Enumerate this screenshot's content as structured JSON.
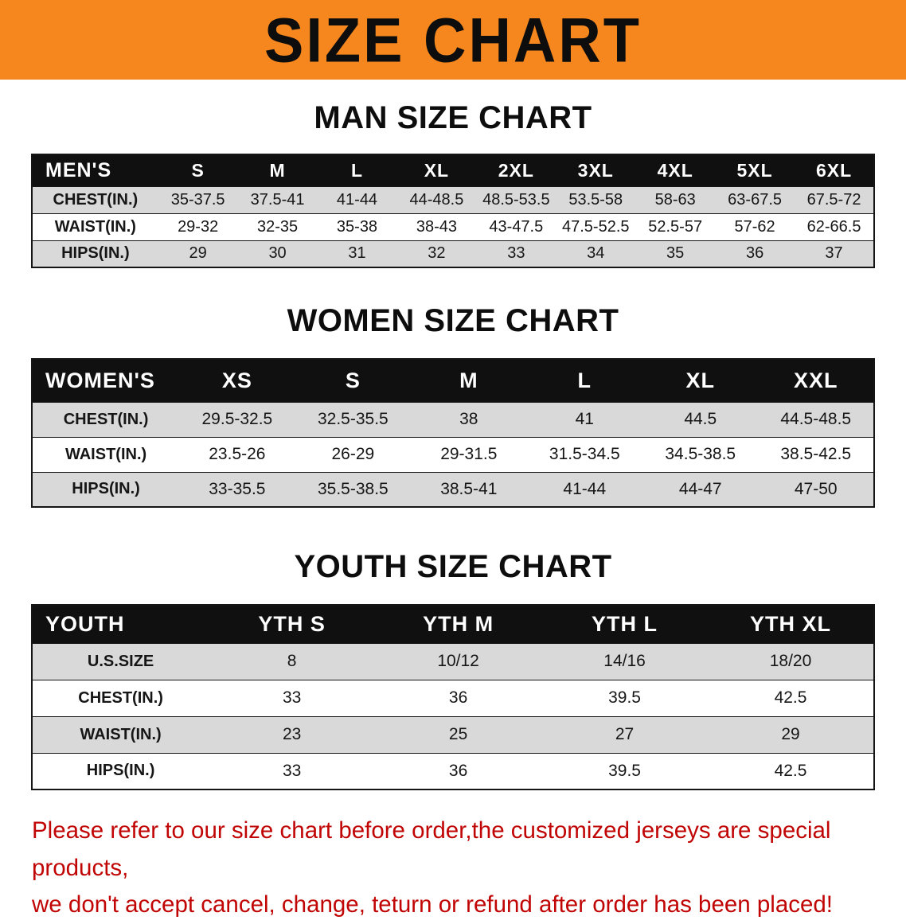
{
  "banner": {
    "title": "SIZE CHART"
  },
  "men": {
    "heading": "MAN SIZE CHART",
    "table": {
      "header": [
        "MEN'S",
        "S",
        "M",
        "L",
        "XL",
        "2XL",
        "3XL",
        "4XL",
        "5XL",
        "6XL"
      ],
      "rows": [
        [
          "CHEST(IN.)",
          "35-37.5",
          "37.5-41",
          "41-44",
          "44-48.5",
          "48.5-53.5",
          "53.5-58",
          "58-63",
          "63-67.5",
          "67.5-72"
        ],
        [
          "WAIST(IN.)",
          "29-32",
          "32-35",
          "35-38",
          "38-43",
          "43-47.5",
          "47.5-52.5",
          "52.5-57",
          "57-62",
          "62-66.5"
        ],
        [
          "HIPS(IN.)",
          "29",
          "30",
          "31",
          "32",
          "33",
          "34",
          "35",
          "36",
          "37"
        ]
      ]
    }
  },
  "women": {
    "heading": "WOMEN SIZE CHART",
    "table": {
      "header": [
        "WOMEN'S",
        "XS",
        "S",
        "M",
        "L",
        "XL",
        "XXL"
      ],
      "rows": [
        [
          "CHEST(IN.)",
          "29.5-32.5",
          "32.5-35.5",
          "38",
          "41",
          "44.5",
          "44.5-48.5"
        ],
        [
          "WAIST(IN.)",
          "23.5-26",
          "26-29",
          "29-31.5",
          "31.5-34.5",
          "34.5-38.5",
          "38.5-42.5"
        ],
        [
          "HIPS(IN.)",
          "33-35.5",
          "35.5-38.5",
          "38.5-41",
          "41-44",
          "44-47",
          "47-50"
        ]
      ]
    }
  },
  "youth": {
    "heading": "YOUTH SIZE CHART",
    "table": {
      "header": [
        "YOUTH",
        "YTH S",
        "YTH M",
        "YTH L",
        "YTH XL"
      ],
      "rows": [
        [
          "U.S.SIZE",
          "8",
          "10/12",
          "14/16",
          "18/20"
        ],
        [
          "CHEST(IN.)",
          "33",
          "36",
          "39.5",
          "42.5"
        ],
        [
          "WAIST(IN.)",
          "23",
          "25",
          "27",
          "29"
        ],
        [
          "HIPS(IN.)",
          "33",
          "36",
          "39.5",
          "42.5"
        ]
      ]
    }
  },
  "disclaimer": {
    "line1": "Please refer to our size chart before order,the customized jerseys are special products,",
    "line2": "we don't accept cancel, change, teturn or refund after order has been placed!"
  },
  "colors": {
    "banner_bg": "#F6871E",
    "table_header_bg": "#101010",
    "row_stripe": "#D9D9D9",
    "disclaimer_text": "#C10505"
  }
}
